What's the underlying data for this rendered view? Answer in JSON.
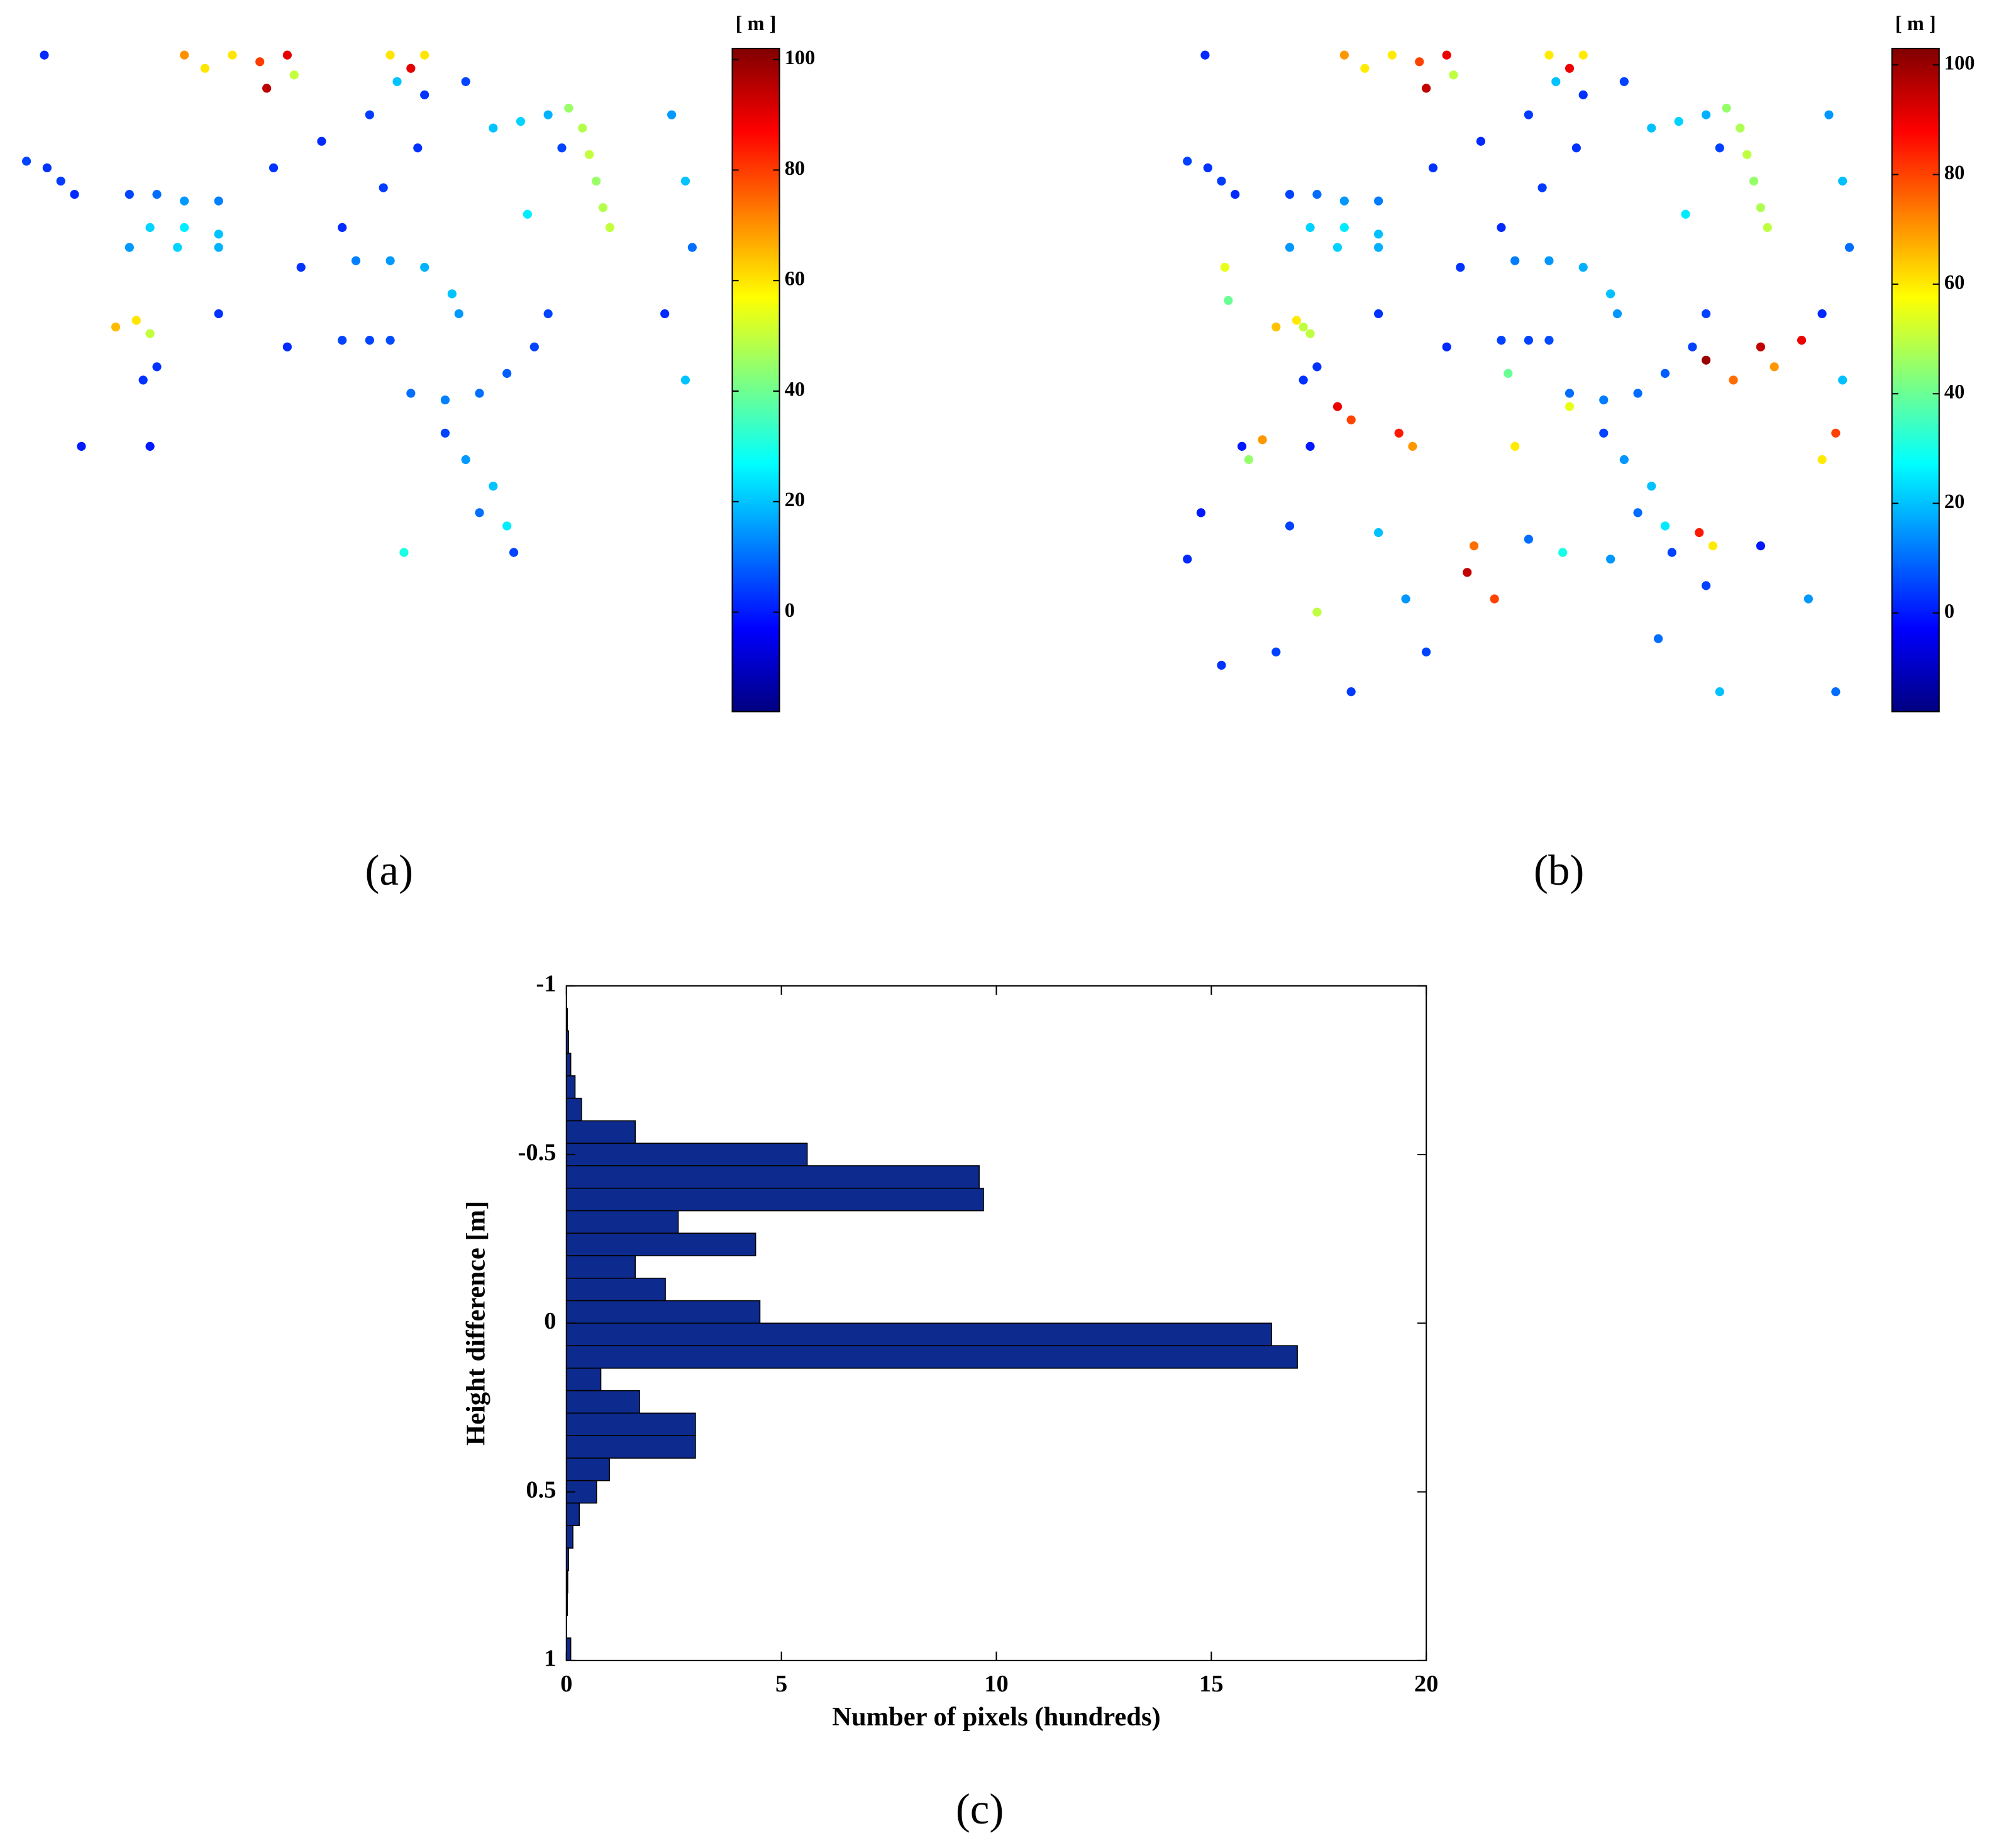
{
  "chart_data": [
    {
      "type": "scatter",
      "caption": "(a)",
      "colormap": "jet",
      "clim": [
        -18,
        102
      ],
      "colorbar_label": "[ m ]",
      "colorbar_ticks": [
        0,
        20,
        40,
        60,
        80,
        100
      ],
      "xlim": [
        0,
        100
      ],
      "ylim": [
        0,
        100
      ],
      "x": [
        4.6,
        2,
        5,
        7,
        9,
        17,
        21,
        25,
        30,
        20,
        25,
        30,
        17,
        24,
        30,
        25,
        28,
        32,
        36,
        37,
        40,
        41,
        55,
        58,
        60,
        56,
        38,
        45,
        52,
        60,
        66,
        42,
        48,
        54,
        59,
        81,
        83,
        84,
        85,
        86,
        87,
        70,
        74,
        78,
        50,
        55,
        60,
        64,
        65,
        48,
        52,
        55,
        58,
        63,
        68,
        72,
        76,
        78,
        63,
        66,
        70,
        68,
        72,
        73,
        57,
        15,
        18,
        20,
        19,
        21,
        96,
        98,
        99,
        98,
        95,
        10,
        20,
        40,
        30,
        75,
        80
      ],
      "y": [
        99,
        83,
        82,
        80,
        78,
        78,
        78,
        77,
        77,
        73,
        73,
        72,
        70,
        70,
        70,
        99,
        97,
        99,
        98,
        94,
        99,
        96,
        99,
        97,
        99,
        95,
        82,
        86,
        90,
        93,
        95,
        67,
        73,
        79,
        85,
        91,
        88,
        84,
        80,
        76,
        73,
        88,
        89,
        90,
        68,
        68,
        67,
        63,
        60,
        56,
        56,
        56,
        48,
        47,
        48,
        51,
        55,
        60,
        42,
        38,
        34,
        30,
        28,
        24,
        24,
        58,
        59,
        57,
        50,
        52,
        90,
        80,
        70,
        50,
        60,
        40,
        40,
        55,
        60,
        75,
        85
      ],
      "values": [
        2,
        5,
        3,
        4,
        2,
        5,
        10,
        15,
        12,
        22,
        25,
        20,
        15,
        22,
        18,
        70,
        60,
        60,
        80,
        95,
        90,
        50,
        60,
        90,
        60,
        20,
        3,
        2,
        4,
        3,
        5,
        3,
        2,
        4,
        3,
        45,
        48,
        50,
        45,
        48,
        50,
        20,
        22,
        18,
        12,
        15,
        18,
        20,
        15,
        5,
        5,
        6,
        10,
        12,
        10,
        8,
        5,
        5,
        5,
        15,
        20,
        10,
        25,
        5,
        30,
        65,
        60,
        50,
        3,
        3,
        15,
        20,
        10,
        20,
        2,
        0,
        0,
        2,
        3,
        25,
        5
      ]
    },
    {
      "type": "scatter",
      "caption": "(b)",
      "colormap": "jet",
      "clim": [
        -18,
        103
      ],
      "colorbar_label": "[ m ]",
      "colorbar_ticks": [
        0,
        20,
        40,
        60,
        80,
        100
      ],
      "xlim": [
        0,
        100
      ],
      "ylim": [
        0,
        100
      ],
      "x": [
        4.6,
        2,
        5,
        7,
        9,
        17,
        21,
        25,
        30,
        20,
        25,
        30,
        17,
        24,
        30,
        25,
        28,
        32,
        36,
        37,
        40,
        41,
        55,
        58,
        60,
        56,
        38,
        45,
        52,
        60,
        66,
        42,
        48,
        54,
        59,
        81,
        83,
        84,
        85,
        86,
        87,
        70,
        74,
        78,
        50,
        55,
        60,
        64,
        65,
        48,
        52,
        55,
        58,
        63,
        68,
        72,
        76,
        78,
        63,
        66,
        70,
        68,
        72,
        73,
        57,
        15,
        18,
        20,
        19,
        21,
        96,
        98,
        99,
        98,
        95,
        10,
        20,
        40,
        30,
        75,
        80,
        24,
        26,
        33,
        35,
        43,
        44,
        47,
        77,
        79,
        86,
        88,
        92,
        78,
        82,
        97,
        95,
        7.5,
        8,
        19,
        50,
        58,
        49,
        13,
        11,
        21,
        2,
        7,
        15,
        26,
        37,
        71,
        78,
        86,
        93,
        97,
        80,
        64,
        52,
        30,
        17,
        4,
        34
      ],
      "y": [
        99,
        83,
        82,
        80,
        78,
        78,
        78,
        77,
        77,
        73,
        73,
        72,
        70,
        70,
        70,
        99,
        97,
        99,
        98,
        94,
        99,
        96,
        99,
        97,
        99,
        95,
        82,
        86,
        90,
        93,
        95,
        67,
        73,
        79,
        85,
        91,
        88,
        84,
        80,
        76,
        73,
        88,
        89,
        90,
        68,
        68,
        67,
        63,
        60,
        56,
        56,
        56,
        48,
        47,
        48,
        51,
        55,
        60,
        42,
        38,
        34,
        30,
        28,
        24,
        24,
        58,
        59,
        57,
        50,
        52,
        90,
        80,
        70,
        50,
        60,
        40,
        40,
        55,
        60,
        75,
        85,
        46,
        44,
        42,
        40,
        21,
        25,
        17,
        27,
        25,
        55,
        52,
        56,
        53,
        50,
        42,
        38,
        67,
        62,
        58,
        40,
        46,
        51,
        41,
        38,
        15,
        23,
        7,
        9,
        3,
        9,
        11,
        19,
        25,
        17,
        3,
        3,
        23,
        26,
        27,
        28,
        30,
        17
      ],
      "values": [
        2,
        5,
        3,
        4,
        2,
        5,
        10,
        15,
        12,
        22,
        25,
        20,
        15,
        22,
        18,
        70,
        60,
        60,
        80,
        95,
        90,
        50,
        60,
        90,
        60,
        20,
        3,
        2,
        4,
        3,
        5,
        3,
        2,
        4,
        3,
        45,
        48,
        50,
        45,
        48,
        50,
        20,
        22,
        18,
        12,
        15,
        18,
        20,
        15,
        5,
        5,
        6,
        10,
        12,
        10,
        8,
        5,
        5,
        5,
        15,
        20,
        10,
        25,
        5,
        30,
        65,
        60,
        50,
        3,
        3,
        15,
        20,
        10,
        20,
        2,
        0,
        0,
        2,
        3,
        25,
        5,
        90,
        80,
        85,
        70,
        95,
        75,
        80,
        85,
        60,
        95,
        70,
        90,
        100,
        75,
        80,
        60,
        55,
        40,
        50,
        60,
        55,
        40,
        70,
        45,
        50,
        2,
        3,
        5,
        4,
        5,
        10,
        5,
        0,
        15,
        10,
        20,
        15,
        10,
        20,
        5,
        0,
        15
      ]
    },
    {
      "type": "histogram",
      "orientation": "horizontal",
      "caption": "(c)",
      "color": "#0d2b8e",
      "x_label": "Number of pixels (hundreds)",
      "y_label": "Height difference [m]",
      "xlim": [
        0,
        20
      ],
      "xticks": [
        0,
        5,
        10,
        15,
        20
      ],
      "ylim": [
        -1,
        1
      ],
      "yticks": [
        -1,
        -0.5,
        0,
        0.5,
        1
      ],
      "y_reversed": true,
      "bins": [
        -1,
        -0.9333,
        -0.8667,
        -0.8,
        -0.7333,
        -0.6667,
        -0.6,
        -0.5333,
        -0.4667,
        -0.4,
        -0.3333,
        -0.2667,
        -0.2,
        -0.1333,
        -0.0667,
        0,
        0.0667,
        0.1333,
        0.2,
        0.2667,
        0.3333,
        0.4,
        0.4667,
        0.5333,
        0.6,
        0.6667,
        0.7333,
        0.8,
        0.8667,
        0.9333,
        1
      ],
      "values": [
        0,
        0.02,
        0.05,
        0.1,
        0.2,
        0.35,
        1.6,
        5.6,
        9.6,
        9.7,
        2.6,
        4.4,
        1.6,
        2.3,
        4.5,
        16.4,
        17.0,
        0.8,
        1.7,
        3.0,
        3.0,
        1.0,
        0.7,
        0.3,
        0.15,
        0.05,
        0.03,
        0.02,
        0,
        0.1
      ]
    }
  ]
}
